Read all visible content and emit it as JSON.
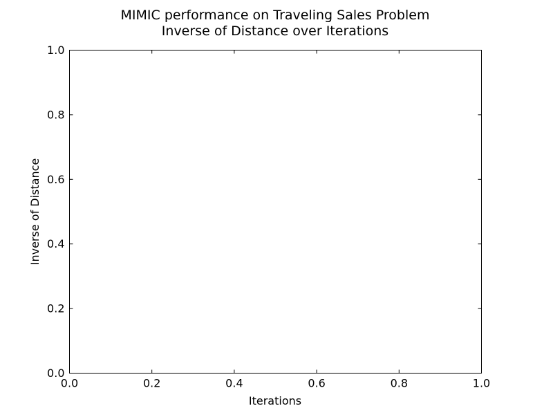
{
  "chart_data": {
    "type": "line",
    "title": "MIMIC performance on Traveling Sales Problem",
    "subtitle": "Inverse of Distance over Iterations",
    "xlabel": "Iterations",
    "ylabel": "Inverse of Distance",
    "xlim": [
      0.0,
      1.0
    ],
    "ylim": [
      0.0,
      1.0
    ],
    "x_ticks": [
      "0.0",
      "0.2",
      "0.4",
      "0.6",
      "0.8",
      "1.0"
    ],
    "y_ticks": [
      "0.0",
      "0.2",
      "0.4",
      "0.6",
      "0.8",
      "1.0"
    ],
    "grid": false,
    "series": []
  }
}
